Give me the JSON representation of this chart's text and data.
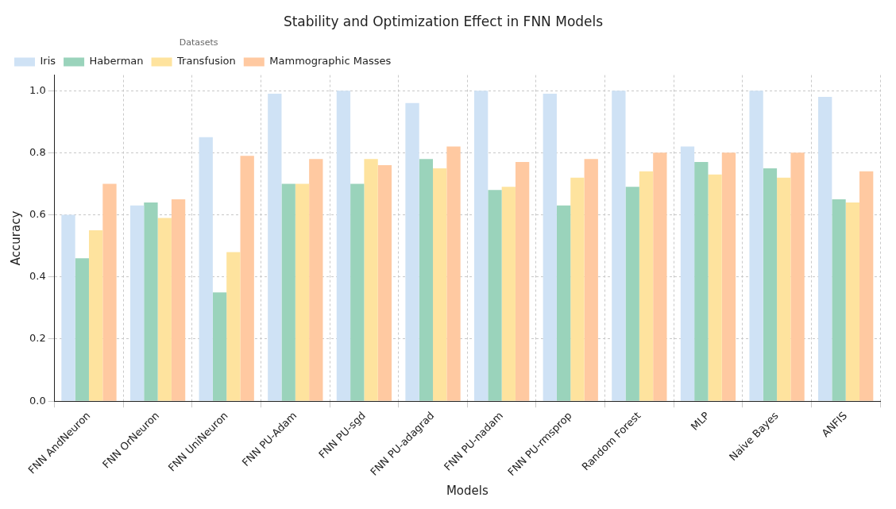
{
  "chart_data": {
    "type": "bar",
    "title": "Stability and Optimization Effect in FNN Models",
    "xlabel": "Models",
    "ylabel": "Accuracy",
    "legend_title": "Datasets",
    "categories": [
      "FNN AndNeuron",
      "FNN OrNeuron",
      "FNN UniNeuron",
      "FNN PU-Adam",
      "FNN PU-sgd",
      "FNN PU-adagrad",
      "FNN PU-nadam",
      "FNN PU-rmsprop",
      "Random Forest",
      "MLP",
      "Naive Bayes",
      "ANFIS"
    ],
    "series": [
      {
        "name": "Iris",
        "color": "#cfe2f5",
        "values": [
          0.6,
          0.63,
          0.85,
          0.99,
          1.0,
          0.96,
          1.0,
          0.99,
          1.0,
          0.82,
          1.0,
          0.98
        ]
      },
      {
        "name": "Haberman",
        "color": "#9ad3bb",
        "values": [
          0.46,
          0.64,
          0.35,
          0.7,
          0.7,
          0.78,
          0.68,
          0.63,
          0.69,
          0.77,
          0.75,
          0.65
        ]
      },
      {
        "name": "Transfusion",
        "color": "#fee39e",
        "values": [
          0.55,
          0.59,
          0.48,
          0.7,
          0.78,
          0.75,
          0.69,
          0.72,
          0.74,
          0.73,
          0.72,
          0.64
        ]
      },
      {
        "name": "Mammographic Masses",
        "color": "#ffc9a1",
        "values": [
          0.7,
          0.65,
          0.79,
          0.78,
          0.76,
          0.82,
          0.77,
          0.78,
          0.8,
          0.8,
          0.8,
          0.74
        ]
      }
    ],
    "ylim": [
      0,
      1.05
    ],
    "yticks": [
      {
        "value": 0,
        "label": "0.0"
      },
      0.2,
      0.4,
      0.6,
      0.8,
      {
        "value": 1,
        "label": "1.0"
      }
    ],
    "grid": true,
    "legend": "top left"
  }
}
